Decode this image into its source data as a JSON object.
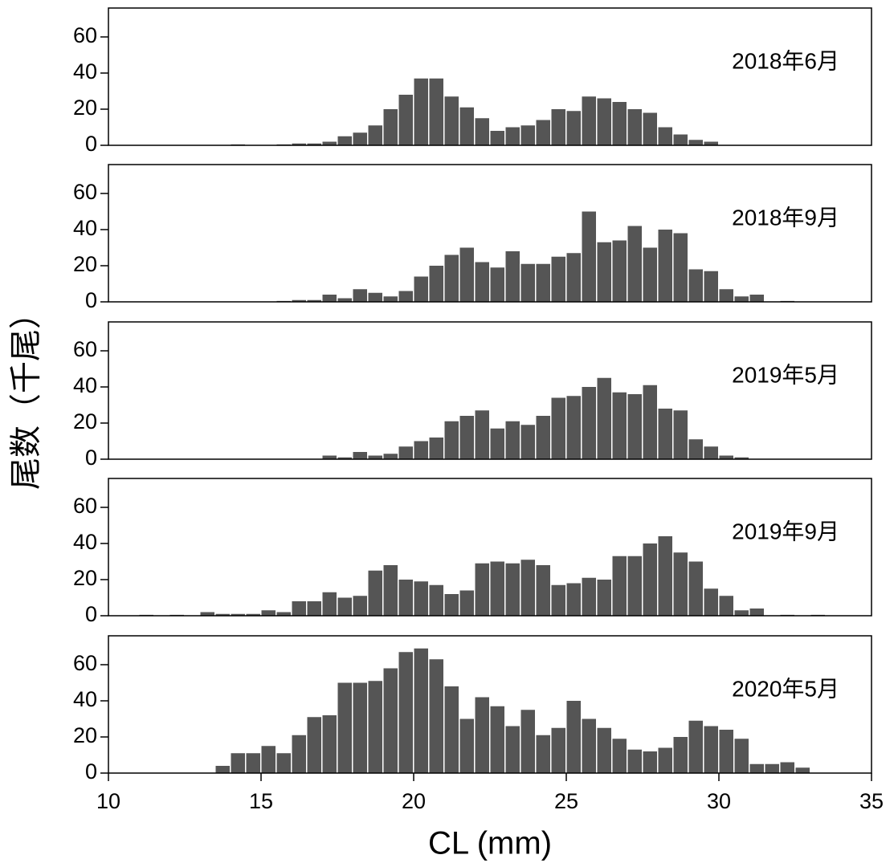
{
  "chart_data": [
    {
      "type": "histogram",
      "label": "2018年6月",
      "color": "#555555",
      "xlim": [
        10,
        35
      ],
      "ylim": [
        0,
        76
      ],
      "yticks": [
        0,
        20,
        40,
        60
      ],
      "bins": [
        10,
        10.5,
        11,
        11.5,
        12,
        12.5,
        13,
        13.5,
        14,
        14.5,
        15,
        15.5,
        16,
        16.5,
        17,
        17.5,
        18,
        18.5,
        19,
        19.5,
        20,
        20.5,
        21,
        21.5,
        22,
        22.5,
        23,
        23.5,
        24,
        24.5,
        25,
        25.5,
        26,
        26.5,
        27,
        27.5,
        28,
        28.5,
        29,
        29.5,
        30,
        30.5,
        31,
        31.5,
        32,
        32.5,
        33,
        33.5,
        34,
        34.5,
        35
      ],
      "values": [
        0,
        0,
        0,
        0,
        0,
        0,
        0,
        0,
        0.5,
        0,
        0,
        0.5,
        1,
        1,
        2,
        5,
        7,
        11,
        20,
        28,
        37,
        37,
        27,
        21,
        15,
        8,
        10,
        11,
        14,
        20,
        19,
        27,
        26,
        24,
        20,
        18,
        10,
        6,
        3,
        2,
        0,
        0,
        0,
        0,
        0,
        0,
        0,
        0,
        0,
        0
      ]
    },
    {
      "type": "histogram",
      "label": "2018年9月",
      "color": "#555555",
      "xlim": [
        10,
        35
      ],
      "ylim": [
        0,
        76
      ],
      "yticks": [
        0,
        20,
        40,
        60
      ],
      "bins": [
        10,
        10.5,
        11,
        11.5,
        12,
        12.5,
        13,
        13.5,
        14,
        14.5,
        15,
        15.5,
        16,
        16.5,
        17,
        17.5,
        18,
        18.5,
        19,
        19.5,
        20,
        20.5,
        21,
        21.5,
        22,
        22.5,
        23,
        23.5,
        24,
        24.5,
        25,
        25.5,
        26,
        26.5,
        27,
        27.5,
        28,
        28.5,
        29,
        29.5,
        30,
        30.5,
        31,
        31.5,
        32,
        32.5,
        33,
        33.5,
        34,
        34.5,
        35
      ],
      "values": [
        0,
        0,
        0,
        0,
        0,
        0,
        0,
        0,
        0,
        0,
        0,
        0.5,
        1,
        1,
        4,
        2,
        7,
        5,
        3,
        6,
        14,
        20,
        26,
        30,
        22,
        19,
        28,
        21,
        21,
        25,
        27,
        50,
        33,
        34,
        42,
        30,
        40,
        38,
        18,
        17,
        7,
        3,
        4,
        0,
        0.5,
        0,
        0,
        0,
        0,
        0
      ]
    },
    {
      "type": "histogram",
      "label": "2019年5月",
      "ylabel": "尾数（千尾）",
      "color": "#555555",
      "xlim": [
        10,
        35
      ],
      "ylim": [
        0,
        76
      ],
      "yticks": [
        0,
        20,
        40,
        60
      ],
      "bins": [
        10,
        10.5,
        11,
        11.5,
        12,
        12.5,
        13,
        13.5,
        14,
        14.5,
        15,
        15.5,
        16,
        16.5,
        17,
        17.5,
        18,
        18.5,
        19,
        19.5,
        20,
        20.5,
        21,
        21.5,
        22,
        22.5,
        23,
        23.5,
        24,
        24.5,
        25,
        25.5,
        26,
        26.5,
        27,
        27.5,
        28,
        28.5,
        29,
        29.5,
        30,
        30.5,
        31,
        31.5,
        32,
        32.5,
        33,
        33.5,
        34,
        34.5,
        35
      ],
      "values": [
        0,
        0,
        0,
        0,
        0,
        0,
        0,
        0,
        0,
        0,
        0,
        0,
        0,
        0,
        2,
        1,
        4,
        2,
        3,
        7,
        10,
        12,
        21,
        24,
        27,
        17,
        21,
        19,
        24,
        34,
        35,
        40,
        45,
        37,
        36,
        41,
        28,
        27,
        11,
        7,
        2,
        1,
        0,
        0,
        0,
        0,
        0,
        0,
        0,
        0
      ]
    },
    {
      "type": "histogram",
      "label": "2019年9月",
      "color": "#555555",
      "xlim": [
        10,
        35
      ],
      "ylim": [
        0,
        76
      ],
      "yticks": [
        0,
        20,
        40,
        60
      ],
      "bins": [
        10,
        10.5,
        11,
        11.5,
        12,
        12.5,
        13,
        13.5,
        14,
        14.5,
        15,
        15.5,
        16,
        16.5,
        17,
        17.5,
        18,
        18.5,
        19,
        19.5,
        20,
        20.5,
        21,
        21.5,
        22,
        22.5,
        23,
        23.5,
        24,
        24.5,
        25,
        25.5,
        26,
        26.5,
        27,
        27.5,
        28,
        28.5,
        29,
        29.5,
        30,
        30.5,
        31,
        31.5,
        32,
        32.5,
        33,
        33.5,
        34,
        34.5,
        35
      ],
      "values": [
        0,
        0,
        0.5,
        0,
        0.5,
        0,
        2,
        1,
        1,
        1,
        3,
        2,
        8,
        8,
        13,
        10,
        11,
        25,
        28,
        20,
        19,
        17,
        12,
        14,
        29,
        30,
        29,
        31,
        28,
        17,
        18,
        21,
        20,
        33,
        33,
        40,
        44,
        35,
        30,
        15,
        11,
        3,
        4,
        0,
        0.5,
        0,
        0.5,
        0,
        0,
        0
      ]
    },
    {
      "type": "histogram",
      "label": "2020年5月",
      "xlabel": "CL (mm)",
      "color": "#555555",
      "xlim": [
        10,
        35
      ],
      "ylim": [
        0,
        76
      ],
      "yticks": [
        0,
        20,
        40,
        60
      ],
      "xticks": [
        10,
        15,
        20,
        25,
        30,
        35
      ],
      "bins": [
        10,
        10.5,
        11,
        11.5,
        12,
        12.5,
        13,
        13.5,
        14,
        14.5,
        15,
        15.5,
        16,
        16.5,
        17,
        17.5,
        18,
        18.5,
        19,
        19.5,
        20,
        20.5,
        21,
        21.5,
        22,
        22.5,
        23,
        23.5,
        24,
        24.5,
        25,
        25.5,
        26,
        26.5,
        27,
        27.5,
        28,
        28.5,
        29,
        29.5,
        30,
        30.5,
        31,
        31.5,
        32,
        32.5,
        33,
        33.5,
        34,
        34.5,
        35
      ],
      "values": [
        0,
        0,
        0,
        0,
        0,
        0,
        0,
        4,
        11,
        11,
        15,
        11,
        21,
        31,
        32,
        50,
        50,
        51,
        58,
        67,
        69,
        63,
        48,
        30,
        42,
        37,
        26,
        35,
        21,
        25,
        40,
        30,
        25,
        19,
        13,
        12,
        14,
        20,
        29,
        26,
        24,
        19,
        5,
        5,
        6,
        3,
        0,
        0,
        0,
        0
      ]
    }
  ]
}
